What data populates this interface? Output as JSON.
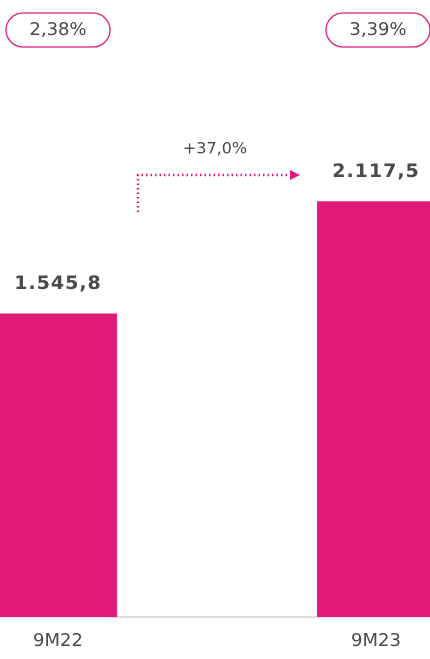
{
  "chart_data": {
    "type": "bar",
    "categories": [
      "9M22",
      "9M23"
    ],
    "values": [
      1545.8,
      2117.5
    ],
    "value_labels": [
      "1.545,8",
      "2.117,5"
    ],
    "badges": [
      "2,38%",
      "3,39%"
    ],
    "change_label": "+37,0%",
    "color": "#e01b7a",
    "ylim": [
      0,
      3000
    ]
  }
}
